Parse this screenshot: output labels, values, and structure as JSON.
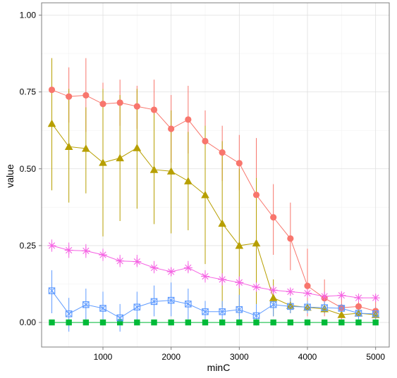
{
  "chart_data": {
    "type": "line",
    "title": "",
    "xlabel": "minC",
    "ylabel": "value",
    "xlim": [
      100,
      5200
    ],
    "ylim": [
      -0.08,
      1.04
    ],
    "xticks": [
      1000,
      2000,
      3000,
      4000,
      5000
    ],
    "xtick_labels": [
      "1000",
      "2000",
      "3000",
      "4000",
      "5000"
    ],
    "yticks": [
      0,
      0.25,
      0.5,
      0.75,
      1
    ],
    "ytick_labels": [
      "0.00",
      "0.25",
      "0.50",
      "0.75",
      "1.00"
    ],
    "grid": true,
    "error_bars": true,
    "x": [
      250,
      500,
      750,
      1000,
      1250,
      1500,
      1750,
      2000,
      2250,
      2500,
      2750,
      3000,
      3250,
      3500,
      3750,
      4000,
      4250,
      4500,
      4750,
      5000
    ],
    "series": [
      {
        "color": "#F8766D",
        "marker": "circle",
        "values": [
          0.757,
          0.735,
          0.739,
          0.711,
          0.715,
          0.703,
          0.692,
          0.63,
          0.66,
          0.59,
          0.553,
          0.518,
          0.415,
          0.342,
          0.273,
          0.119,
          0.079,
          0.048,
          0.052,
          0.037
        ],
        "err_low": [
          0.66,
          0.65,
          0.62,
          0.63,
          0.64,
          0.63,
          0.6,
          0.52,
          0.55,
          0.49,
          0.46,
          0.43,
          0.3,
          0.22,
          0.17,
          0.02,
          0.02,
          0.01,
          0.02,
          0.01
        ],
        "err_high": [
          0.86,
          0.83,
          0.86,
          0.78,
          0.79,
          0.77,
          0.79,
          0.74,
          0.77,
          0.69,
          0.64,
          0.61,
          0.6,
          0.45,
          0.39,
          0.24,
          0.14,
          0.09,
          0.09,
          0.07
        ]
      },
      {
        "color": "#B79F00",
        "marker": "triangle",
        "values": [
          0.647,
          0.572,
          0.566,
          0.52,
          0.535,
          0.568,
          0.497,
          0.492,
          0.46,
          0.415,
          0.322,
          0.25,
          0.258,
          0.08,
          0.055,
          0.049,
          0.044,
          0.025,
          0.03,
          0.025
        ],
        "err_low": [
          0.43,
          0.39,
          0.42,
          0.28,
          0.33,
          0.37,
          0.32,
          0.29,
          0.3,
          0.19,
          0.05,
          0.02,
          0.05,
          0.02,
          0.03,
          0.03,
          0.03,
          0.02,
          0.02,
          0.02
        ],
        "err_high": [
          0.86,
          0.76,
          0.7,
          0.76,
          0.74,
          0.76,
          0.68,
          0.69,
          0.62,
          0.64,
          0.59,
          0.5,
          0.47,
          0.14,
          0.08,
          0.07,
          0.06,
          0.035,
          0.04,
          0.03
        ]
      },
      {
        "color": "#00BA38",
        "marker": "square",
        "values": [
          0,
          0,
          0,
          0,
          0,
          0,
          0,
          0,
          0,
          0,
          0,
          0,
          0,
          0,
          0,
          0,
          0,
          0,
          0,
          0
        ],
        "err_low": [
          0,
          0,
          0,
          0,
          0,
          0,
          0,
          0,
          0,
          0,
          0,
          0,
          0,
          0,
          0,
          0,
          0,
          0,
          0,
          0
        ],
        "err_high": [
          0,
          0,
          0,
          0,
          0,
          0,
          0,
          0,
          0,
          0,
          0,
          0,
          0,
          0,
          0,
          0,
          0,
          0,
          0,
          0
        ]
      },
      {
        "color": "#619CFF",
        "marker": "square-cross",
        "values": [
          0.103,
          0.028,
          0.058,
          0.046,
          0.015,
          0.05,
          0.068,
          0.072,
          0.06,
          0.035,
          0.035,
          0.042,
          0.022,
          0.058,
          0.052,
          0.05,
          0.048,
          0.046,
          0.03,
          0.028
        ],
        "err_low": [
          0.03,
          -0.03,
          0.0,
          -0.01,
          -0.03,
          0.0,
          0.02,
          0.02,
          0.01,
          0.0,
          0.0,
          0.0,
          -0.01,
          0.02,
          0.03,
          0.03,
          0.03,
          0.03,
          0.01,
          0.01
        ],
        "err_high": [
          0.17,
          0.08,
          0.11,
          0.1,
          0.06,
          0.1,
          0.12,
          0.13,
          0.11,
          0.07,
          0.07,
          0.09,
          0.06,
          0.1,
          0.08,
          0.07,
          0.07,
          0.06,
          0.05,
          0.05
        ]
      },
      {
        "color": "#F564E3",
        "marker": "asterisk",
        "values": [
          0.25,
          0.235,
          0.233,
          0.22,
          0.2,
          0.198,
          0.178,
          0.165,
          0.178,
          0.15,
          0.14,
          0.13,
          0.115,
          0.105,
          0.1,
          0.095,
          0.085,
          0.088,
          0.08,
          0.08
        ],
        "err_low": [
          0.23,
          0.21,
          0.21,
          0.2,
          0.18,
          0.18,
          0.16,
          0.15,
          0.16,
          0.13,
          0.12,
          0.11,
          0.1,
          0.09,
          0.09,
          0.08,
          0.07,
          0.08,
          0.07,
          0.07
        ],
        "err_high": [
          0.27,
          0.26,
          0.255,
          0.24,
          0.22,
          0.22,
          0.2,
          0.18,
          0.2,
          0.17,
          0.16,
          0.15,
          0.13,
          0.12,
          0.11,
          0.11,
          0.1,
          0.1,
          0.09,
          0.09
        ]
      }
    ]
  }
}
